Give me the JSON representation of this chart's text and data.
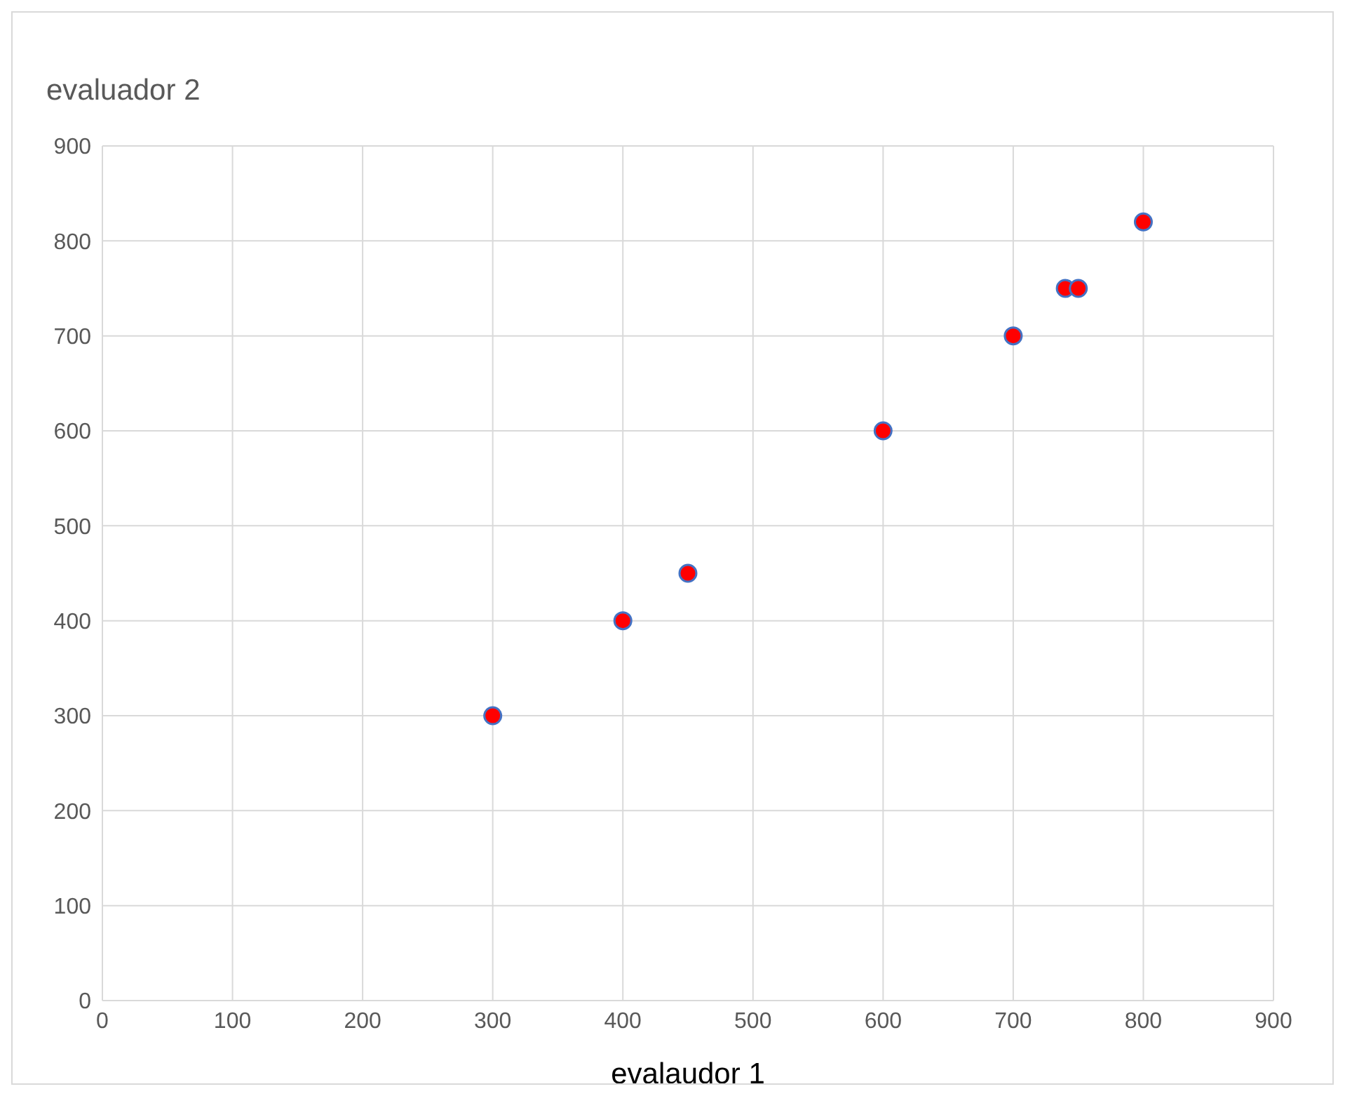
{
  "chart_data": {
    "type": "scatter",
    "xlabel": "evalaudor 1",
    "ylabel": "evaluador 2",
    "x": [
      300,
      400,
      450,
      600,
      700,
      740,
      750,
      800
    ],
    "series": [
      {
        "color": "#ff0000",
        "values": [
          300,
          400,
          450,
          600,
          700,
          750,
          750,
          820
        ]
      }
    ],
    "xlim": [
      0,
      900
    ],
    "xticks": [
      0,
      100,
      200,
      300,
      400,
      500,
      600,
      700,
      800,
      900
    ],
    "ylim": [
      0,
      900
    ],
    "yticks": [
      0,
      100,
      200,
      300,
      400,
      500,
      600,
      700,
      800,
      900
    ],
    "grid": true,
    "legend": false,
    "marker": "circle"
  }
}
